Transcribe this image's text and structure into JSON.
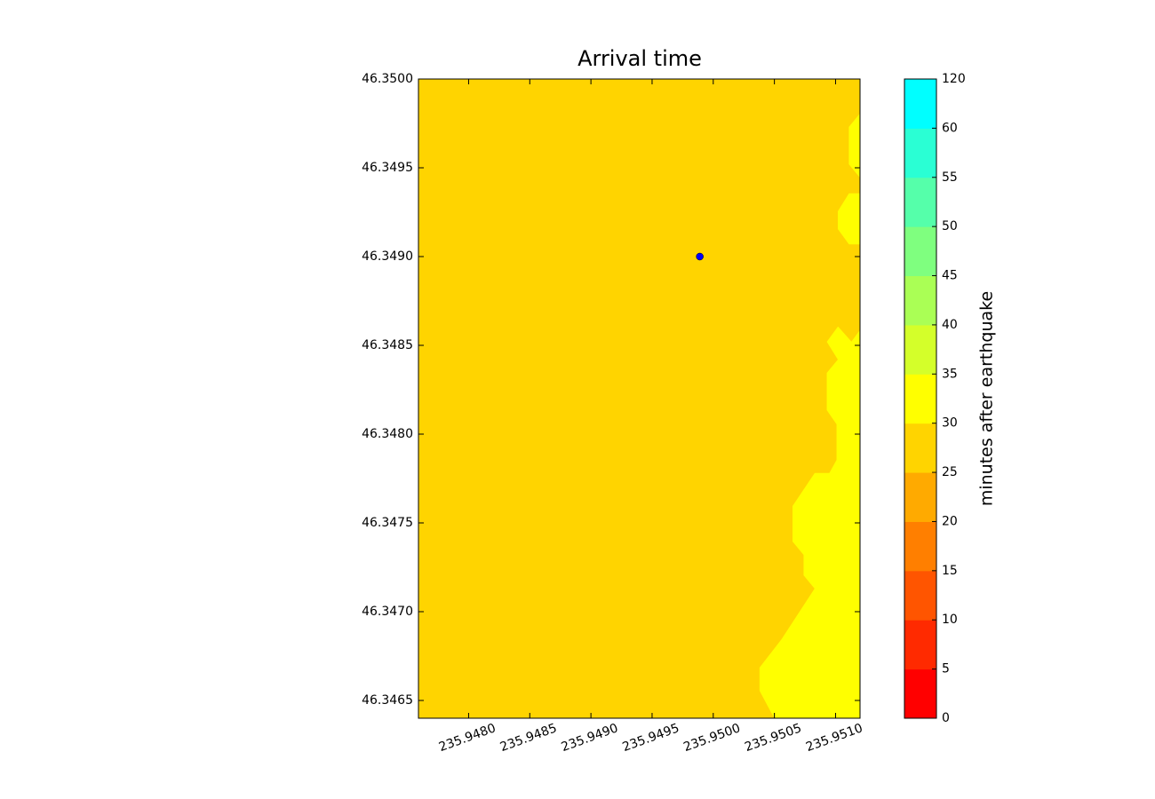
{
  "chart_data": {
    "type": "contour",
    "title": "Arrival time",
    "xlim": [
      235.94759,
      235.9512
    ],
    "ylim": [
      46.3464,
      46.35
    ],
    "xticks": [
      {
        "value": 235.948,
        "label": "235.9480"
      },
      {
        "value": 235.9485,
        "label": "235.9485"
      },
      {
        "value": 235.949,
        "label": "235.9490"
      },
      {
        "value": 235.9495,
        "label": "235.9495"
      },
      {
        "value": 235.95,
        "label": "235.9500"
      },
      {
        "value": 235.9505,
        "label": "235.9505"
      },
      {
        "value": 235.951,
        "label": "235.9510"
      }
    ],
    "yticks": [
      {
        "value": 46.3465,
        "label": "46.3465"
      },
      {
        "value": 46.347,
        "label": "46.3470"
      },
      {
        "value": 46.3475,
        "label": "46.3475"
      },
      {
        "value": 46.348,
        "label": "46.3480"
      },
      {
        "value": 46.3485,
        "label": "46.3485"
      },
      {
        "value": 46.349,
        "label": "46.3490"
      },
      {
        "value": 46.3495,
        "label": "46.3495"
      },
      {
        "value": 46.35,
        "label": "46.3500"
      }
    ],
    "fill_color": "#ffd400",
    "regions": [
      {
        "color": "#ffff00",
        "x": [
          235.9512,
          235.95113,
          235.95102,
          235.95093,
          235.95102,
          235.95093,
          235.95093,
          235.95101,
          235.95101,
          235.95095,
          235.95083,
          235.95065,
          235.95065,
          235.95074,
          235.95074,
          235.95083,
          235.95056,
          235.95038,
          235.95038,
          235.9505,
          235.9512
        ],
        "y": [
          46.348585,
          46.34852,
          46.348605,
          46.34852,
          46.34842,
          46.348345,
          46.348135,
          46.348055,
          46.347855,
          46.34778,
          46.34778,
          46.347595,
          46.347395,
          46.34732,
          46.347205,
          46.34713,
          46.346845,
          46.346685,
          46.346555,
          46.3464,
          46.3464
        ]
      },
      {
        "color": "#ffff00",
        "x": [
          235.9512,
          235.95111,
          235.95111,
          235.9512
        ],
        "y": [
          46.349805,
          46.34973,
          46.34952,
          46.349445
        ]
      },
      {
        "color": "#ffff00",
        "x": [
          235.9512,
          235.95111,
          235.95102,
          235.95102,
          235.95111,
          235.9512
        ],
        "y": [
          46.349355,
          46.349355,
          46.349255,
          46.349155,
          46.34907,
          46.34907
        ]
      }
    ],
    "points": {
      "x": [
        235.94989
      ],
      "y": [
        46.349
      ],
      "color": "#0000ff"
    },
    "colorbar": {
      "label": "minutes after earthquake",
      "levels": [
        0,
        5,
        10,
        15,
        20,
        25,
        30,
        35,
        40,
        45,
        50,
        55,
        60,
        120
      ],
      "colors": [
        "#ff0000",
        "#ff2a00",
        "#ff5500",
        "#ff7f00",
        "#ffaa00",
        "#ffd400",
        "#ffff00",
        "#d4ff2a",
        "#aaff55",
        "#7fff7f",
        "#55ffaa",
        "#2affd4",
        "#00ffff"
      ]
    }
  }
}
